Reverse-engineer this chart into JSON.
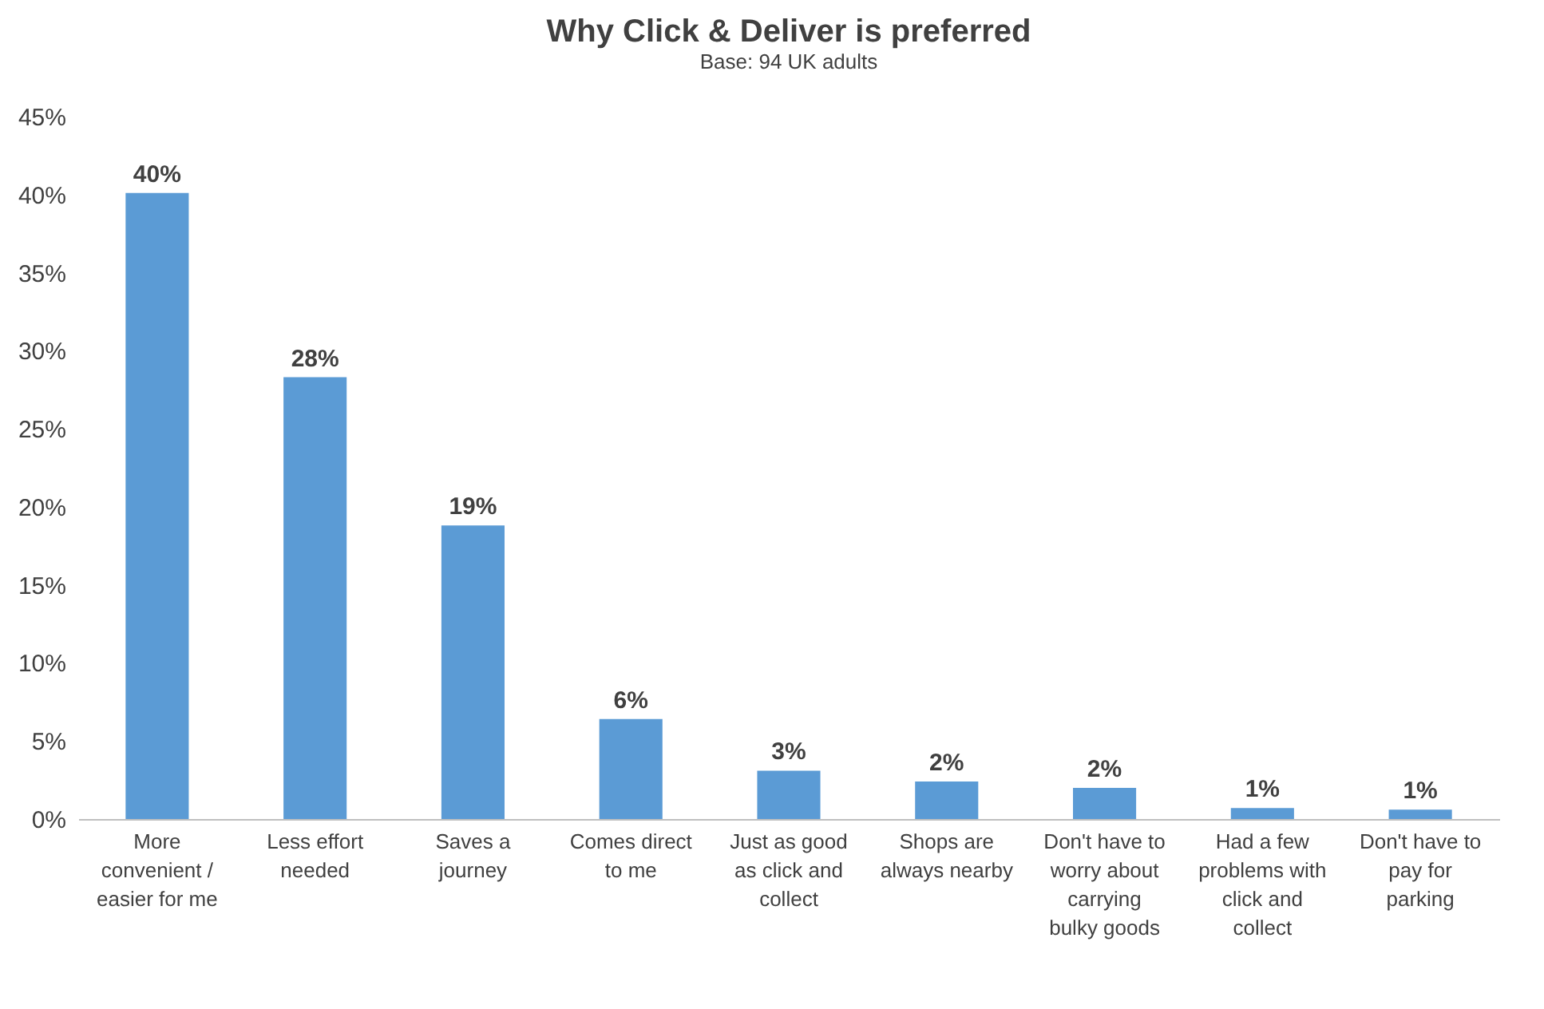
{
  "chart_data": {
    "type": "bar",
    "title": "Why Click & Deliver is preferred",
    "subtitle": "Base: 94 UK adults",
    "categories": [
      "More convenient / easier for me",
      "Less effort needed",
      "Saves a journey",
      "Comes direct to me",
      "Just as good as click and collect",
      "Shops are always nearby",
      "Don't have to worry about carrying bulky goods",
      "Had a few problems with click and collect",
      "Don't have to pay for parking"
    ],
    "values": [
      40.1,
      28.3,
      18.8,
      6.4,
      3.1,
      2.4,
      2.0,
      0.7,
      0.6
    ],
    "value_labels": [
      "40%",
      "28%",
      "19%",
      "6%",
      "3%",
      "2%",
      "2%",
      "1%",
      "1%"
    ],
    "color": "#5b9bd5",
    "ylim": [
      0,
      45
    ],
    "yticks": [
      {
        "value": 0,
        "label": "0%"
      },
      {
        "value": 5,
        "label": "5%"
      },
      {
        "value": 10,
        "label": "10%"
      },
      {
        "value": 15,
        "label": "15%"
      },
      {
        "value": 20,
        "label": "20%"
      },
      {
        "value": 25,
        "label": "25%"
      },
      {
        "value": 30,
        "label": "30%"
      },
      {
        "value": 35,
        "label": "35%"
      },
      {
        "value": 40,
        "label": "40%"
      },
      {
        "value": 45,
        "label": "45%"
      }
    ]
  }
}
